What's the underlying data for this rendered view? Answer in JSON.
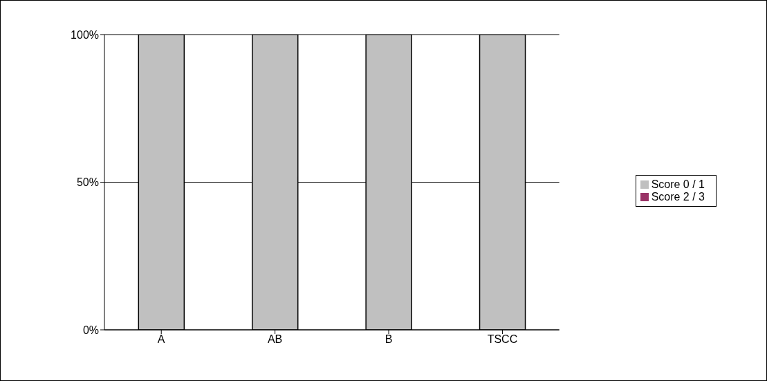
{
  "chart_data": {
    "type": "bar",
    "stacked": true,
    "categories": [
      "A",
      "AB",
      "B",
      "TSCC"
    ],
    "series": [
      {
        "name": "Score 0 / 1",
        "color": "#c0c0c0",
        "values": [
          100,
          100,
          100,
          100
        ]
      },
      {
        "name": "Score 2 / 3",
        "color": "#993366",
        "values": [
          0,
          0,
          0,
          0
        ]
      }
    ],
    "ylim": [
      0,
      100
    ],
    "yticks": [
      {
        "value": 0,
        "label": "0%"
      },
      {
        "value": 50,
        "label": "50%"
      },
      {
        "value": 100,
        "label": "100%"
      }
    ],
    "grid": "y",
    "legend": "right"
  }
}
